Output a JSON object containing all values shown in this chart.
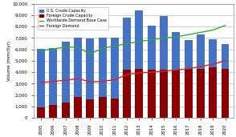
{
  "years": [
    2005,
    2006,
    2007,
    2008,
    2009,
    2010,
    2011,
    2012,
    2013,
    2014,
    2015,
    2016,
    2017,
    2018,
    2019,
    2020
  ],
  "us_crude": [
    5100,
    5000,
    5300,
    5200,
    5300,
    5200,
    5300,
    4600,
    5100,
    3900,
    4700,
    3300,
    2500,
    3000,
    2500,
    2200
  ],
  "foreign_crude": [
    950,
    1100,
    1350,
    1800,
    1650,
    1800,
    1700,
    4200,
    4300,
    4200,
    4200,
    4200,
    4300,
    4300,
    4400,
    4300
  ],
  "worldwide_demand": [
    5900,
    6050,
    6200,
    6200,
    5600,
    6100,
    6300,
    6500,
    6700,
    6850,
    7000,
    7100,
    7300,
    7500,
    7700,
    8100
  ],
  "foreign_demand": [
    3100,
    3200,
    3300,
    3450,
    3150,
    3200,
    3350,
    3800,
    3950,
    4000,
    4100,
    4200,
    4300,
    4500,
    4700,
    5000
  ],
  "us_color": "#4472C4",
  "foreign_color": "#8B0000",
  "worldwide_color": "#33AA33",
  "fd_color": "#DD2222",
  "ylabel": "Volume (mmcf/yr)",
  "ylim": [
    0,
    10000
  ],
  "yticks": [
    0,
    1000,
    2000,
    3000,
    4000,
    5000,
    6000,
    7000,
    8000,
    9000,
    10000
  ],
  "legend_labels": [
    "U.S. Crude Capacity",
    "Foreign Crude Capacity",
    "Worldwide Demand Base Case",
    "Foreign Demand"
  ],
  "background_color": "#FFFFFF",
  "plot_bg_color": "#FFFFFF"
}
